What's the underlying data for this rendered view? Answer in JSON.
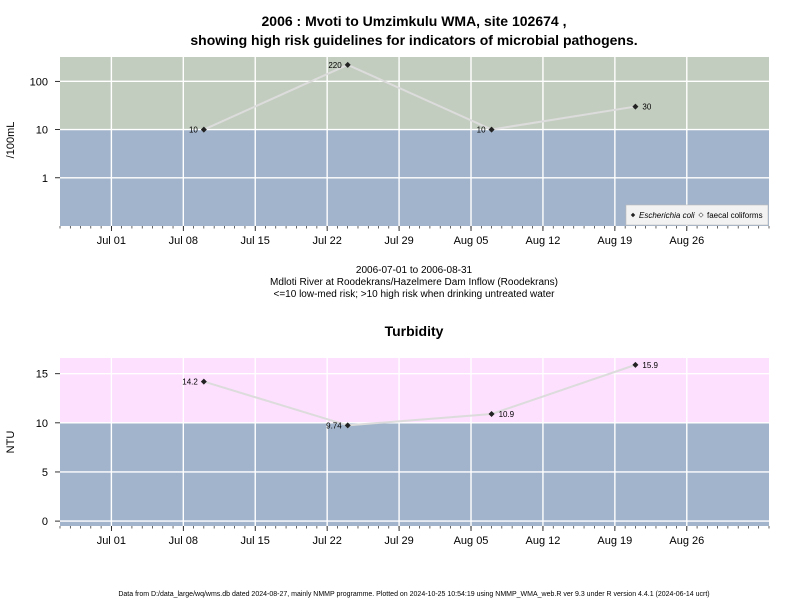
{
  "top": {
    "title_line1": "2006 : Mvoti to Umzimkulu WMA, site 102674 ,",
    "title_line2": "showing high risk guidelines for indicators of microbial pathogens.",
    "ylabel": "/100mL"
  },
  "caption": {
    "line1": "2006-07-01 to 2006-08-31",
    "line2": "Mdloti River at Roodekrans/Hazelmere Dam Inflow (Roodekrans)",
    "line3": "<=10 low-med risk; >10 high risk when drinking untreated water"
  },
  "bottom": {
    "title": "Turbidity",
    "ylabel": "NTU"
  },
  "footer": "Data from D:/data_large/wq/wms.db dated 2024-08-27, mainly NMMP programme. Plotted on 2024-10-25 10:54:19 using NMMP_WMA_web.R ver 9.3 under R version 4.4.1 (2024-06-14 ucrt)",
  "colors": {
    "low_band": "#a2b4cb",
    "high_band_top": "#c3cdbf",
    "high_band_bottom": "#fde0fd",
    "line": "#dcdcdc",
    "point": "#222222"
  },
  "chart_data": [
    {
      "type": "line",
      "title": "2006 : Mvoti to Umzimkulu WMA, site 102674 , showing high risk guidelines for indicators of microbial pathogens.",
      "ylabel": "/100mL",
      "yscale": "log",
      "xlim": [
        "2006-06-26",
        "2006-09-03"
      ],
      "ylim": [
        0.1,
        320
      ],
      "xticks": [
        "Jul 01",
        "Jul 08",
        "Jul 15",
        "Jul 22",
        "Jul 29",
        "Aug 05",
        "Aug 12",
        "Aug 19",
        "Aug 26"
      ],
      "xtick_dates": [
        "2006-07-01",
        "2006-07-08",
        "2006-07-15",
        "2006-07-22",
        "2006-07-29",
        "2006-08-05",
        "2006-08-12",
        "2006-08-19",
        "2006-08-26"
      ],
      "yticks": [
        1,
        10,
        100
      ],
      "ytick_labels": [
        "1",
        "10",
        "100"
      ],
      "threshold": 10,
      "grid": true,
      "legend_position": "bottom-right",
      "legend": [
        "Escherichia coli",
        "faecal coliforms"
      ],
      "series": [
        {
          "name": "Escherichia coli",
          "x": [
            "2006-07-10",
            "2006-07-24",
            "2006-08-07",
            "2006-08-21"
          ],
          "values": [
            10,
            220,
            10,
            30
          ],
          "labels": [
            "10",
            "220",
            "10",
            "30"
          ]
        }
      ]
    },
    {
      "type": "line",
      "title": "Turbidity",
      "ylabel": "NTU",
      "yscale": "linear",
      "xlim": [
        "2006-06-26",
        "2006-09-03"
      ],
      "ylim": [
        -0.5,
        16.6
      ],
      "xticks": [
        "Jul 01",
        "Jul 08",
        "Jul 15",
        "Jul 22",
        "Jul 29",
        "Aug 05",
        "Aug 12",
        "Aug 19",
        "Aug 26"
      ],
      "xtick_dates": [
        "2006-07-01",
        "2006-07-08",
        "2006-07-15",
        "2006-07-22",
        "2006-07-29",
        "2006-08-05",
        "2006-08-12",
        "2006-08-19",
        "2006-08-26"
      ],
      "yticks": [
        0,
        5,
        10,
        15
      ],
      "ytick_labels": [
        "0",
        "5",
        "10",
        "15"
      ],
      "threshold": 10,
      "grid": true,
      "series": [
        {
          "x": [
            "2006-07-10",
            "2006-07-24",
            "2006-08-07",
            "2006-08-21"
          ],
          "values": [
            14.2,
            9.74,
            10.9,
            15.9
          ],
          "labels": [
            "14.2",
            "9.74",
            "10.9",
            "15.9"
          ]
        }
      ]
    }
  ]
}
